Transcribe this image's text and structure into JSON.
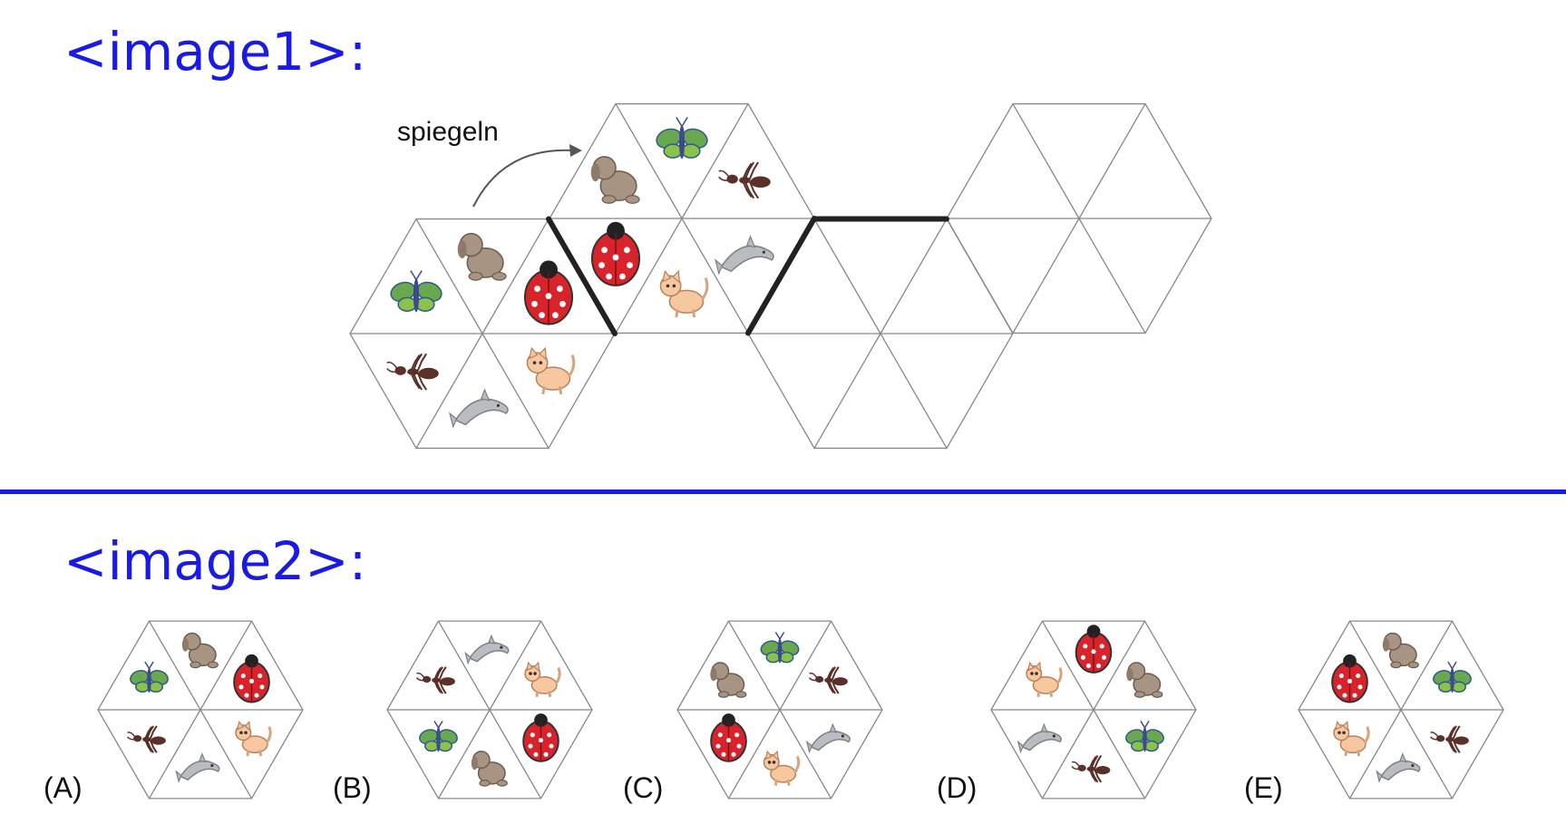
{
  "labels": {
    "image1": "<image1>:",
    "image2": "<image2>:"
  },
  "net": {
    "annotation": "spiegeln",
    "hexagons": [
      {
        "id": "source",
        "cells": [
          "dog",
          "ladybug",
          "cat",
          "dolphin",
          "ant",
          "butterfly"
        ]
      },
      {
        "id": "mirrored",
        "cells": [
          "butterfly",
          "ant",
          "dolphin",
          "cat",
          "ladybug",
          "dog"
        ]
      },
      {
        "id": "empty-1",
        "cells": []
      },
      {
        "id": "empty-2",
        "cells": []
      }
    ]
  },
  "options": [
    {
      "letter": "(A)",
      "cells": [
        "dog",
        "ladybug",
        "cat",
        "dolphin",
        "ant",
        "butterfly"
      ]
    },
    {
      "letter": "(B)",
      "cells": [
        "dolphin",
        "cat",
        "ladybug",
        "dog",
        "butterfly",
        "ant"
      ]
    },
    {
      "letter": "(C)",
      "cells": [
        "butterfly",
        "ant",
        "dolphin",
        "cat",
        "ladybug",
        "dog"
      ]
    },
    {
      "letter": "(D)",
      "cells": [
        "ladybug",
        "dog",
        "butterfly",
        "ant",
        "dolphin",
        "cat"
      ]
    },
    {
      "letter": "(E)",
      "cells": [
        "dog",
        "butterfly",
        "ant",
        "dolphin",
        "cat",
        "ladybug"
      ]
    }
  ],
  "animal_colors": {
    "dog": "#a89483",
    "ladybug": "#d9232b",
    "cat": "#f7c7a0",
    "dolphin": "#b9bcc0",
    "ant": "#5a3028",
    "butterfly": "#6aa84f"
  }
}
